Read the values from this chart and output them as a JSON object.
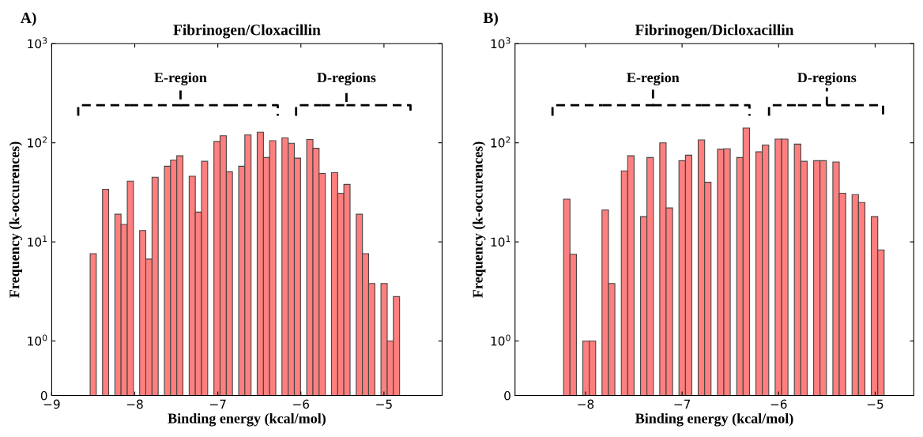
{
  "chart_data": [
    {
      "type": "histogram",
      "title": "Fibrinogen/Cloxacillin",
      "xlabel": "Binding energy (kcal/mol)",
      "ylabel": "Frequency (k-occurences)",
      "color": "#ff7f7f",
      "log": true,
      "bins": [
        -8.537,
        -8.463,
        -8.388,
        -8.314,
        -8.239,
        -8.165,
        -8.09,
        -8.016,
        -7.941,
        -7.867,
        -7.792,
        -7.718,
        -7.643,
        -7.569,
        -7.494,
        -7.42,
        -7.345,
        -7.271,
        -7.196,
        -7.122,
        -7.047,
        -6.973,
        -6.898,
        -6.824,
        -6.749,
        -6.675,
        -6.6,
        -6.526,
        -6.451,
        -6.377,
        -6.302,
        -6.228,
        -6.153,
        -6.079,
        -6.004,
        -5.93,
        -5.855,
        -5.781,
        -5.706,
        -5.632,
        -5.557,
        -5.483,
        -5.408,
        -5.334,
        -5.259,
        -5.185,
        -5.11,
        -5.036,
        -4.961,
        -4.887,
        -4.812
      ],
      "values": [
        7.6,
        0,
        34,
        0,
        19,
        15,
        41,
        0,
        13,
        6.7,
        45,
        0,
        58,
        67,
        74,
        0,
        46,
        20,
        65,
        0,
        103,
        118,
        51,
        0,
        58,
        120,
        0,
        128,
        71,
        105,
        0,
        112,
        99,
        70,
        0,
        108,
        88,
        49,
        0,
        50,
        31,
        38,
        0,
        19,
        7.6,
        3.8,
        0,
        3.8,
        1,
        2.8
      ],
      "xlim": [
        -9,
        -4.3
      ],
      "xticks": [
        {
          "value": -9,
          "label": "−9"
        },
        {
          "value": -8,
          "label": "−8"
        },
        {
          "value": -7,
          "label": "−7"
        },
        {
          "value": -6,
          "label": "−6"
        },
        {
          "value": -5,
          "label": "−5"
        }
      ],
      "ylim": [
        0,
        1000
      ],
      "yticks": [
        0,
        {
          "value": 1,
          "label": "10$^{0}$"
        },
        {
          "value": 10,
          "label": "10$^{1}$"
        },
        {
          "value": 100,
          "label": "10$^{2}$"
        },
        {
          "value": 1000,
          "label": "10$^{3}$"
        }
      ],
      "grid": false,
      "annotations": [
        "A)",
        "E-region",
        "D-regions"
      ]
    },
    {
      "type": "histogram",
      "title": "Fibrinogen/Dicloxacillin",
      "xlabel": "Binding energy (kcal/mol)",
      "ylabel": "Frequency (k-occurences)",
      "color": "#ff7f7f",
      "log": true,
      "bins": [
        -8.227,
        -8.161,
        -8.094,
        -8.028,
        -7.961,
        -7.895,
        -7.829,
        -7.762,
        -7.696,
        -7.629,
        -7.563,
        -7.497,
        -7.43,
        -7.364,
        -7.297,
        -7.231,
        -7.165,
        -7.098,
        -7.032,
        -6.965,
        -6.899,
        -6.833,
        -6.766,
        -6.7,
        -6.633,
        -6.567,
        -6.501,
        -6.434,
        -6.368,
        -6.301,
        -6.235,
        -6.169,
        -6.102,
        -6.036,
        -5.969,
        -5.903,
        -5.837,
        -5.77,
        -5.704,
        -5.637,
        -5.571,
        -5.505,
        -5.438,
        -5.372,
        -5.305,
        -5.239,
        -5.173,
        -5.106,
        -5.04,
        -4.973,
        -4.907
      ],
      "values": [
        27,
        7.5,
        0,
        1,
        1,
        0,
        21,
        3.8,
        0,
        52,
        74,
        0,
        18,
        71,
        0,
        100,
        22,
        0,
        66,
        75,
        0,
        107,
        40,
        0,
        86,
        87,
        0,
        71,
        141,
        0,
        81,
        95,
        0,
        109,
        109,
        0,
        97,
        65,
        0,
        66,
        66,
        0,
        64,
        31,
        0,
        30,
        25,
        0,
        18,
        8.3
      ],
      "xlim": [
        -8.73,
        -4.6
      ],
      "xticks": [
        {
          "value": -8,
          "label": "−8"
        },
        {
          "value": -7,
          "label": "−7"
        },
        {
          "value": -6,
          "label": "−6"
        },
        {
          "value": -5,
          "label": "−5"
        }
      ],
      "ylim": [
        0,
        1000
      ],
      "yticks": [
        0,
        {
          "value": 1,
          "label": "10$^{0}$"
        },
        {
          "value": 10,
          "label": "10$^{1}$"
        },
        {
          "value": 100,
          "label": "10$^{2}$"
        },
        {
          "value": 1000,
          "label": "10$^{3}$"
        }
      ],
      "grid": false,
      "annotations": [
        "B)",
        "E-region",
        "D-regions"
      ]
    }
  ]
}
